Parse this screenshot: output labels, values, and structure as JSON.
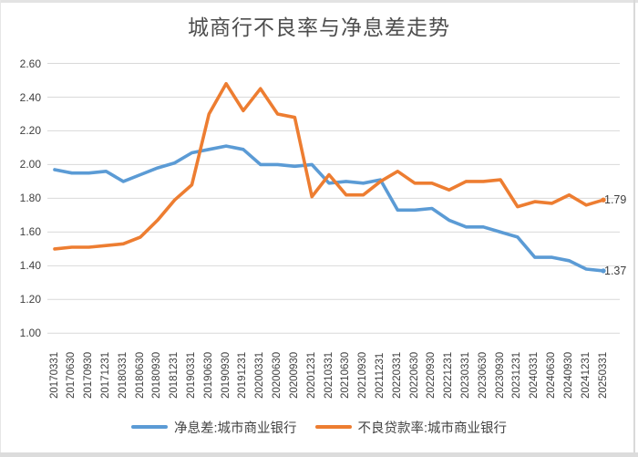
{
  "chart_data": {
    "type": "line",
    "title": "城商行不良率与净息差走势",
    "categories": [
      "20170331",
      "20170630",
      "20170930",
      "20171231",
      "20180331",
      "20180630",
      "20180930",
      "20181231",
      "20190331",
      "20190630",
      "20190930",
      "20191231",
      "20200331",
      "20200630",
      "20200930",
      "20201231",
      "20210331",
      "20210630",
      "20210930",
      "20211231",
      "20220331",
      "20220630",
      "20220930",
      "20221231",
      "20230331",
      "20230630",
      "20230930",
      "20231231",
      "20240331",
      "20240630",
      "20240930",
      "20241231",
      "20250331"
    ],
    "series": [
      {
        "name": "净息差:城市商业银行",
        "color": "#5B9BD5",
        "values": [
          1.97,
          1.95,
          1.95,
          1.96,
          1.9,
          1.94,
          1.98,
          2.01,
          2.07,
          2.09,
          2.11,
          2.09,
          2.0,
          2.0,
          1.99,
          2.0,
          1.89,
          1.9,
          1.89,
          1.91,
          1.73,
          1.73,
          1.74,
          1.67,
          1.63,
          1.63,
          1.6,
          1.57,
          1.45,
          1.45,
          1.43,
          1.38,
          1.37
        ],
        "end_label": "1.37"
      },
      {
        "name": "不良贷款率:城市商业银行",
        "color": "#ED7D31",
        "values": [
          1.5,
          1.51,
          1.51,
          1.52,
          1.53,
          1.57,
          1.67,
          1.79,
          1.88,
          2.3,
          2.48,
          2.32,
          2.45,
          2.3,
          2.28,
          1.81,
          1.94,
          1.82,
          1.82,
          1.9,
          1.96,
          1.89,
          1.89,
          1.85,
          1.9,
          1.9,
          1.91,
          1.75,
          1.78,
          1.77,
          1.82,
          1.76,
          1.79
        ],
        "end_label": "1.79"
      }
    ],
    "y_axis": {
      "min": 1.0,
      "max": 2.6,
      "step": 0.2,
      "tick_labels": [
        "2.60",
        "2.40",
        "2.20",
        "2.00",
        "1.80",
        "1.60",
        "1.40",
        "1.20",
        "1.00"
      ]
    },
    "x_axis": {
      "label_rotation_deg": -90
    },
    "grid": true,
    "legend_position": "bottom",
    "colors": {
      "gridline": "#D9D9D9",
      "axis_text": "#3f3f3f",
      "title_text": "#4d4d4d",
      "window_edge": "#dcdcdc"
    }
  }
}
